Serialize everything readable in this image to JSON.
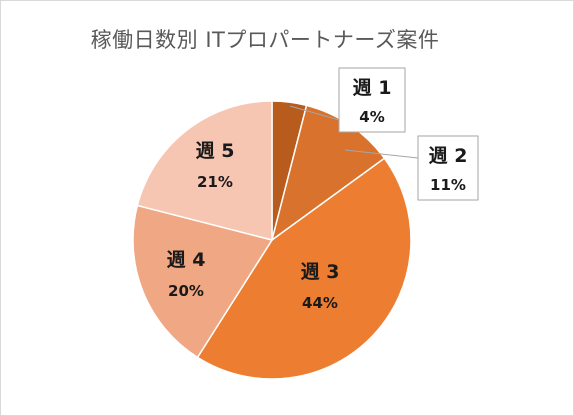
{
  "chart_data": {
    "type": "pie",
    "title": "稼働日数別 ITプロパートナーズ案件",
    "categories": [
      "週 1",
      "週 2",
      "週 3",
      "週 4",
      "週 5"
    ],
    "values": [
      4,
      11,
      44,
      20,
      21
    ],
    "value_labels": [
      "4%",
      "11%",
      "44%",
      "20%",
      "21%"
    ],
    "colors": [
      "#b85c1e",
      "#d9722c",
      "#ed7d31",
      "#f0a783",
      "#f6c6b2"
    ],
    "legend": "none",
    "start_angle": "top",
    "direction": "clockwise",
    "callouts": [
      "週 1",
      "週 2"
    ]
  }
}
